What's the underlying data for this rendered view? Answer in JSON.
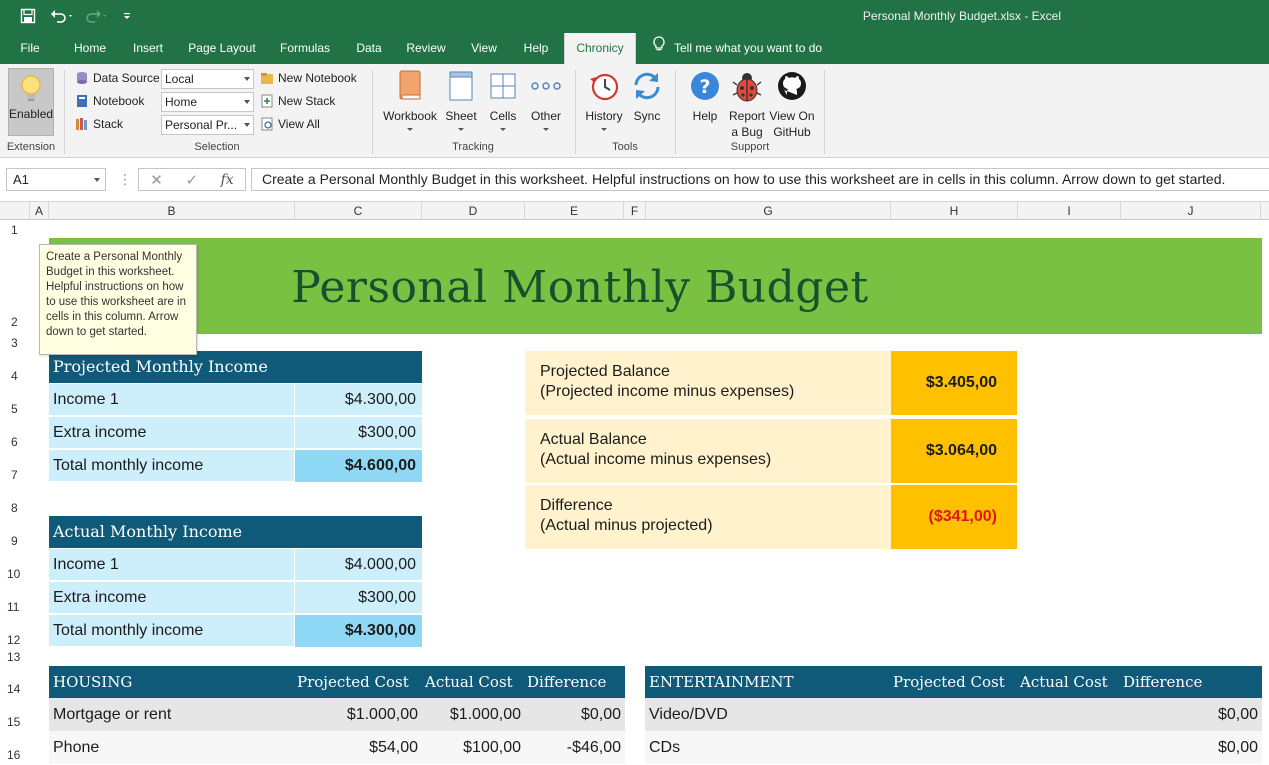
{
  "window": {
    "title": "Personal Monthly Budget.xlsx  -  Excel"
  },
  "tabs": [
    {
      "label": "File"
    },
    {
      "label": "Home"
    },
    {
      "label": "Insert"
    },
    {
      "label": "Page Layout"
    },
    {
      "label": "Formulas"
    },
    {
      "label": "Data"
    },
    {
      "label": "Review"
    },
    {
      "label": "View"
    },
    {
      "label": "Help"
    },
    {
      "label": "Chronicy"
    }
  ],
  "tell_me": "Tell me what you want to do",
  "ribbon": {
    "extension": {
      "button": "Enabled",
      "group": "Extension"
    },
    "selection": {
      "group": "Selection",
      "data_source_label": "Data Source",
      "data_source_value": "Local",
      "notebook_label": "Notebook",
      "notebook_value": "Home",
      "stack_label": "Stack",
      "stack_value": "Personal Pr...",
      "new_notebook": "New Notebook",
      "new_stack": "New Stack",
      "view_all": "View All"
    },
    "tracking": {
      "group": "Tracking",
      "workbook": "Workbook",
      "sheet": "Sheet",
      "cells": "Cells",
      "other": "Other"
    },
    "tools": {
      "group": "Tools",
      "history": "History",
      "sync": "Sync"
    },
    "support": {
      "group": "Support",
      "help": "Help",
      "report_l1": "Report",
      "report_l2": "a Bug",
      "github_l1": "View On",
      "github_l2": "GitHub"
    }
  },
  "formula_bar": {
    "name_box": "A1",
    "formula": "Create a Personal Monthly Budget in this worksheet. Helpful instructions on how to use this worksheet are in cells in this column. Arrow down to get started."
  },
  "columns": [
    "A",
    "B",
    "C",
    "D",
    "E",
    "F",
    "G",
    "H",
    "I",
    "J"
  ],
  "rows": [
    "1",
    "2",
    "3",
    "4",
    "5",
    "6",
    "7",
    "8",
    "9",
    "10",
    "11",
    "12",
    "13",
    "14",
    "15",
    "16"
  ],
  "sheet": {
    "title": "Personal Monthly Budget",
    "tooltip": "Create a Personal Monthly Budget in this worksheet. Helpful instructions on how to use this worksheet are in cells in this column. Arrow down to get started.",
    "projected_income": {
      "header": "Projected Monthly Income",
      "rows": [
        {
          "label": "Income 1",
          "value": "$4.300,00"
        },
        {
          "label": "Extra income",
          "value": "$300,00"
        },
        {
          "label": "Total monthly income",
          "value": "$4.600,00"
        }
      ]
    },
    "actual_income": {
      "header": "Actual Monthly Income",
      "rows": [
        {
          "label": "Income 1",
          "value": "$4.000,00"
        },
        {
          "label": "Extra income",
          "value": "$300,00"
        },
        {
          "label": "Total monthly income",
          "value": "$4.300,00"
        }
      ]
    },
    "balances": [
      {
        "line1": "Projected Balance",
        "line2": "(Projected income minus expenses)",
        "value": "$3.405,00"
      },
      {
        "line1": "Actual Balance",
        "line2": "(Actual income minus expenses)",
        "value": "$3.064,00"
      },
      {
        "line1": "Difference",
        "line2": "(Actual minus projected)",
        "value": "($341,00)"
      }
    ],
    "housing": {
      "header": "HOUSING",
      "col_projected": "Projected Cost",
      "col_actual": "Actual Cost",
      "col_diff": "Difference",
      "rows": [
        {
          "label": "Mortgage or rent",
          "projected": "$1.000,00",
          "actual": "$1.000,00",
          "diff": "$0,00"
        },
        {
          "label": "Phone",
          "projected": "$54,00",
          "actual": "$100,00",
          "diff": "-$46,00"
        }
      ]
    },
    "entertainment": {
      "header": "ENTERTAINMENT",
      "col_projected": "Projected Cost",
      "col_actual": "Actual Cost",
      "col_diff": "Difference",
      "rows": [
        {
          "label": "Video/DVD",
          "diff": "$0,00"
        },
        {
          "label": "CDs",
          "diff": "$0,00"
        }
      ]
    }
  },
  "colors": {
    "excel_green": "#217346",
    "banner_green": "#7ac143",
    "title_green": "#14522c",
    "table_header": "#0f5a78",
    "income_row": "#cdeefb",
    "income_total": "#8fd8f6",
    "balance_label": "#fff2cc",
    "balance_value": "#ffc000",
    "negative": "#e0151b"
  }
}
